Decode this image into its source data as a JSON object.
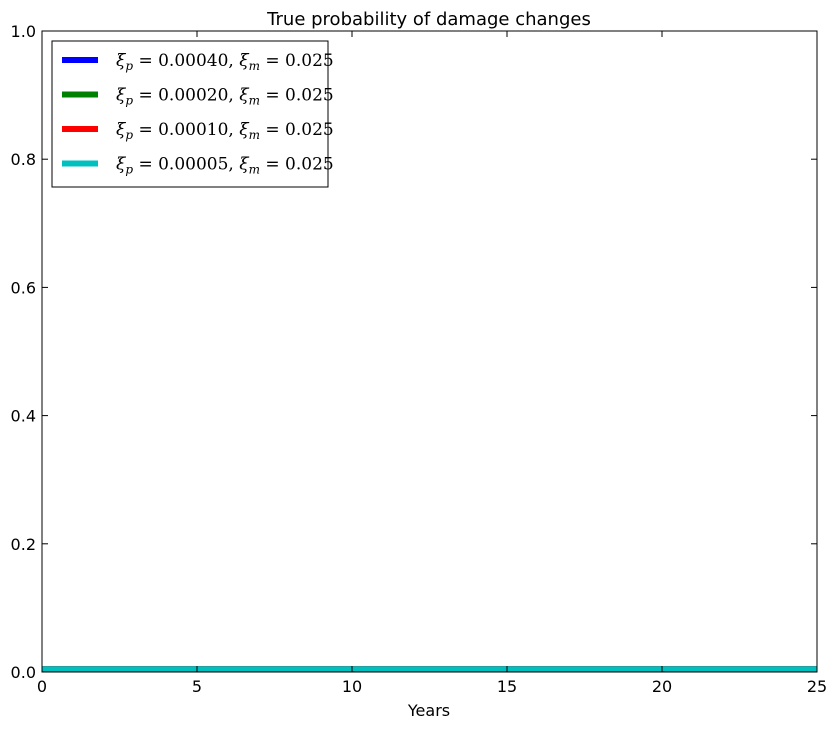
{
  "chart_data": {
    "type": "line",
    "title": "True probability of damage changes",
    "xlabel": "Years",
    "ylabel": "",
    "xlim": [
      0,
      25
    ],
    "ylim": [
      0,
      1
    ],
    "xticks": [
      0,
      5,
      10,
      15,
      20,
      25
    ],
    "yticks": [
      0.0,
      0.2,
      0.4,
      0.6,
      0.8,
      1.0
    ],
    "xtick_labels": [
      "0",
      "5",
      "10",
      "15",
      "20",
      "25"
    ],
    "ytick_labels": [
      "0.0",
      "0.2",
      "0.4",
      "0.6",
      "0.8",
      "1.0"
    ],
    "grid": false,
    "legend_position": "top-left",
    "series": [
      {
        "name": "ξp = 0.00040, ξm = 0.025",
        "label_main": "ξ",
        "label_sub": "p",
        "label_rest": " = 0.00040, ",
        "label_main2": "ξ",
        "label_sub2": "m",
        "label_rest2": " = 0.025",
        "color": "#0000ff",
        "x": [
          0,
          25
        ],
        "y": [
          0.005,
          0.005
        ]
      },
      {
        "name": "ξp = 0.00020, ξm = 0.025",
        "label_main": "ξ",
        "label_sub": "p",
        "label_rest": " = 0.00020, ",
        "label_main2": "ξ",
        "label_sub2": "m",
        "label_rest2": " = 0.025",
        "color": "#008000",
        "x": [
          0,
          25
        ],
        "y": [
          0.005,
          0.005
        ]
      },
      {
        "name": "ξp = 0.00010, ξm = 0.025",
        "label_main": "ξ",
        "label_sub": "p",
        "label_rest": " = 0.00010, ",
        "label_main2": "ξ",
        "label_sub2": "m",
        "label_rest2": " = 0.025",
        "color": "#ff0000",
        "x": [
          0,
          25
        ],
        "y": [
          0.005,
          0.005
        ]
      },
      {
        "name": "ξp = 0.00005, ξm = 0.025",
        "label_main": "ξ",
        "label_sub": "p",
        "label_rest": " = 0.00005, ",
        "label_main2": "ξ",
        "label_sub2": "m",
        "label_rest2": " = 0.025",
        "color": "#00bfbf",
        "x": [
          0,
          25
        ],
        "y": [
          0.005,
          0.005
        ]
      }
    ]
  }
}
